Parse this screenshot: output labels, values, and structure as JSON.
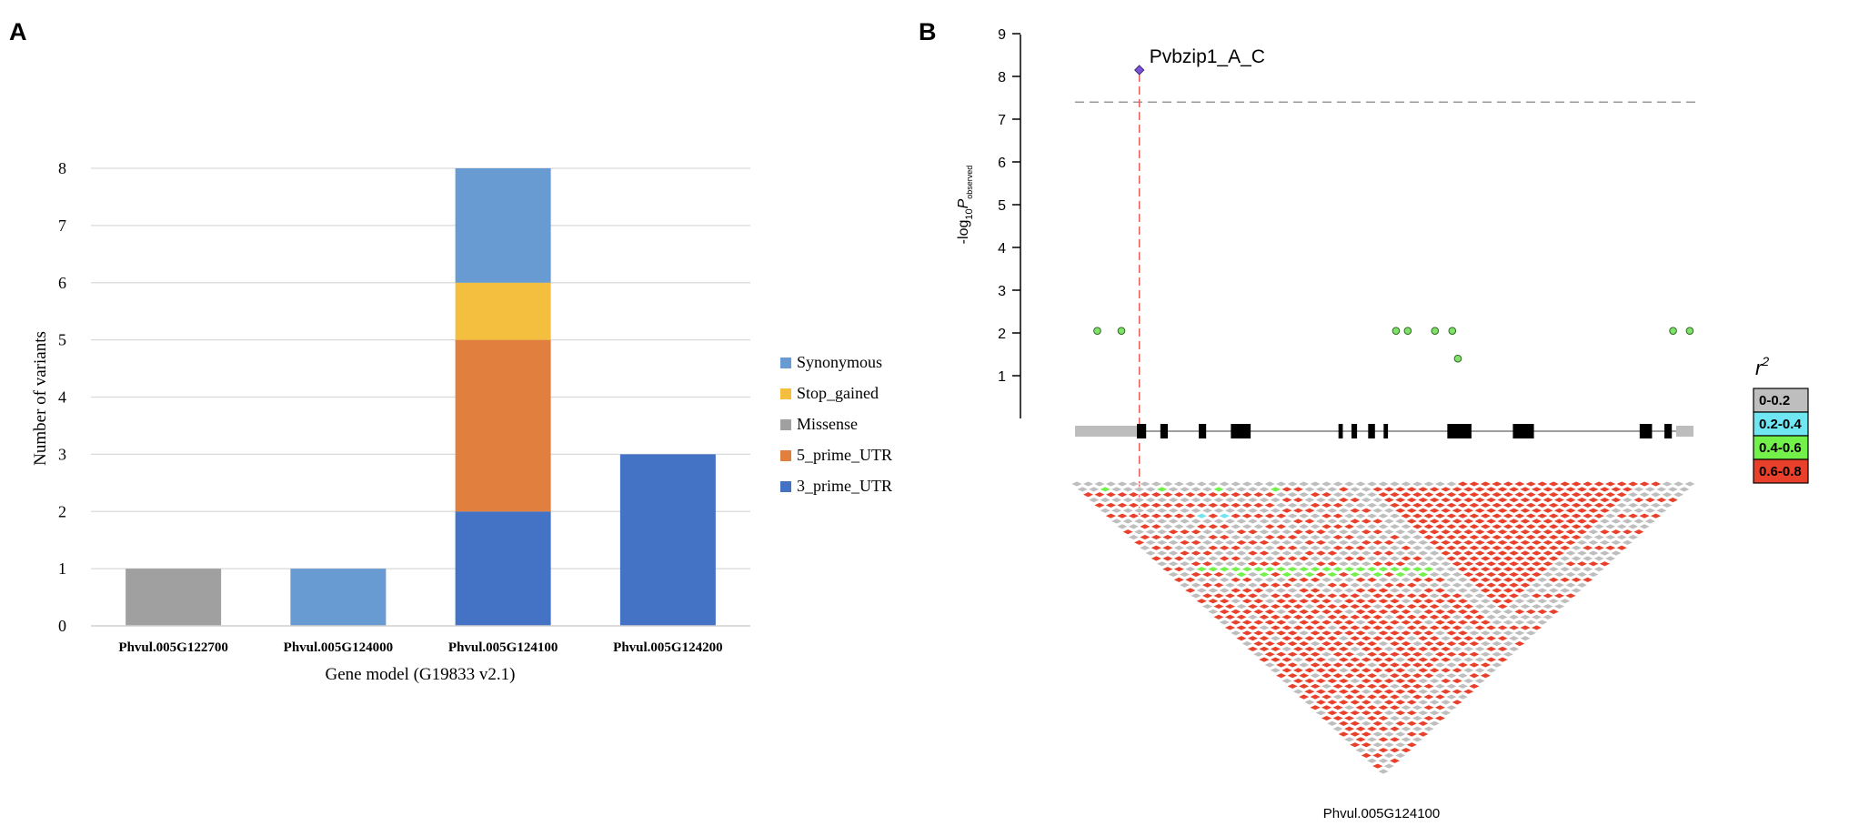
{
  "panel_labels": {
    "a": "A",
    "b": "B"
  },
  "chart_data": [
    {
      "type": "bar",
      "stacked": true,
      "title": "",
      "xlabel": "Gene model (G19833 v2.1)",
      "ylabel": "Number of variants",
      "ylim": [
        0,
        8
      ],
      "yticks": [
        "0",
        "1",
        "2",
        "3",
        "4",
        "5",
        "6",
        "7",
        "8"
      ],
      "categories": [
        "Phvul.005G122700",
        "Phvul.005G124000",
        "Phvul.005G124100",
        "Phvul.005G124200"
      ],
      "series": [
        {
          "name": "3_prime_UTR",
          "color": "#4472c4",
          "values": [
            0,
            0,
            2,
            3
          ]
        },
        {
          "name": "5_prime_UTR",
          "color": "#e07f3e",
          "values": [
            0,
            0,
            3,
            0
          ]
        },
        {
          "name": "Missense",
          "color": "#a0a0a0",
          "values": [
            1,
            0,
            0,
            0
          ]
        },
        {
          "name": "Stop_gained",
          "color": "#f4bf3e",
          "values": [
            0,
            0,
            1,
            0
          ]
        },
        {
          "name": "Synonymous",
          "color": "#679bd1",
          "values": [
            0,
            1,
            2,
            0
          ]
        }
      ],
      "legend_order": [
        "Synonymous",
        "Stop_gained",
        "Missense",
        "5_prime_UTR",
        "3_prime_UTR"
      ],
      "legend_position": "right"
    },
    {
      "type": "scatter",
      "title": "",
      "xlabel": "Phvul.005G124100",
      "ylabel_prefix": "-log",
      "ylabel_sub": "10",
      "ylabel_p": "P",
      "ylabel_psub": "observed",
      "ylim": [
        0,
        9
      ],
      "yticks": [
        "1",
        "2",
        "3",
        "4",
        "5",
        "6",
        "7",
        "8",
        "9"
      ],
      "xlim": [
        0,
        100
      ],
      "threshold": 7.4,
      "lead_snp": {
        "label": "Pvbzip1_A_C",
        "x": 10.4,
        "y": 8.15
      },
      "points": [
        {
          "x": 3.6,
          "y": 2.05
        },
        {
          "x": 7.5,
          "y": 2.05
        },
        {
          "x": 51.9,
          "y": 2.05
        },
        {
          "x": 53.8,
          "y": 2.05
        },
        {
          "x": 58.2,
          "y": 2.05
        },
        {
          "x": 61.0,
          "y": 2.05
        },
        {
          "x": 61.9,
          "y": 1.4
        },
        {
          "x": 96.7,
          "y": 2.05
        },
        {
          "x": 99.4,
          "y": 2.05
        }
      ],
      "gene_exons": [
        [
          10.0,
          11.5
        ],
        [
          13.8,
          15.0
        ],
        [
          20.0,
          21.2
        ],
        [
          25.2,
          28.4
        ],
        [
          42.6,
          43.3
        ],
        [
          44.7,
          45.6
        ],
        [
          47.4,
          48.5
        ],
        [
          49.9,
          50.6
        ],
        [
          60.2,
          64.1
        ],
        [
          70.8,
          74.2
        ],
        [
          91.3,
          93.3
        ],
        [
          95.3,
          96.5
        ]
      ],
      "ld_legend_title": "r",
      "ld_legend_sup": "2",
      "ld_legend": [
        {
          "label": "0-0.2",
          "color": "#bebebe"
        },
        {
          "label": "0.2-0.4",
          "color": "#6fe6f2"
        },
        {
          "label": "0.4-0.6",
          "color": "#74f04a"
        },
        {
          "label": "0.6-0.8",
          "color": "#e8402a"
        }
      ],
      "ld_snp_count": 55
    }
  ]
}
